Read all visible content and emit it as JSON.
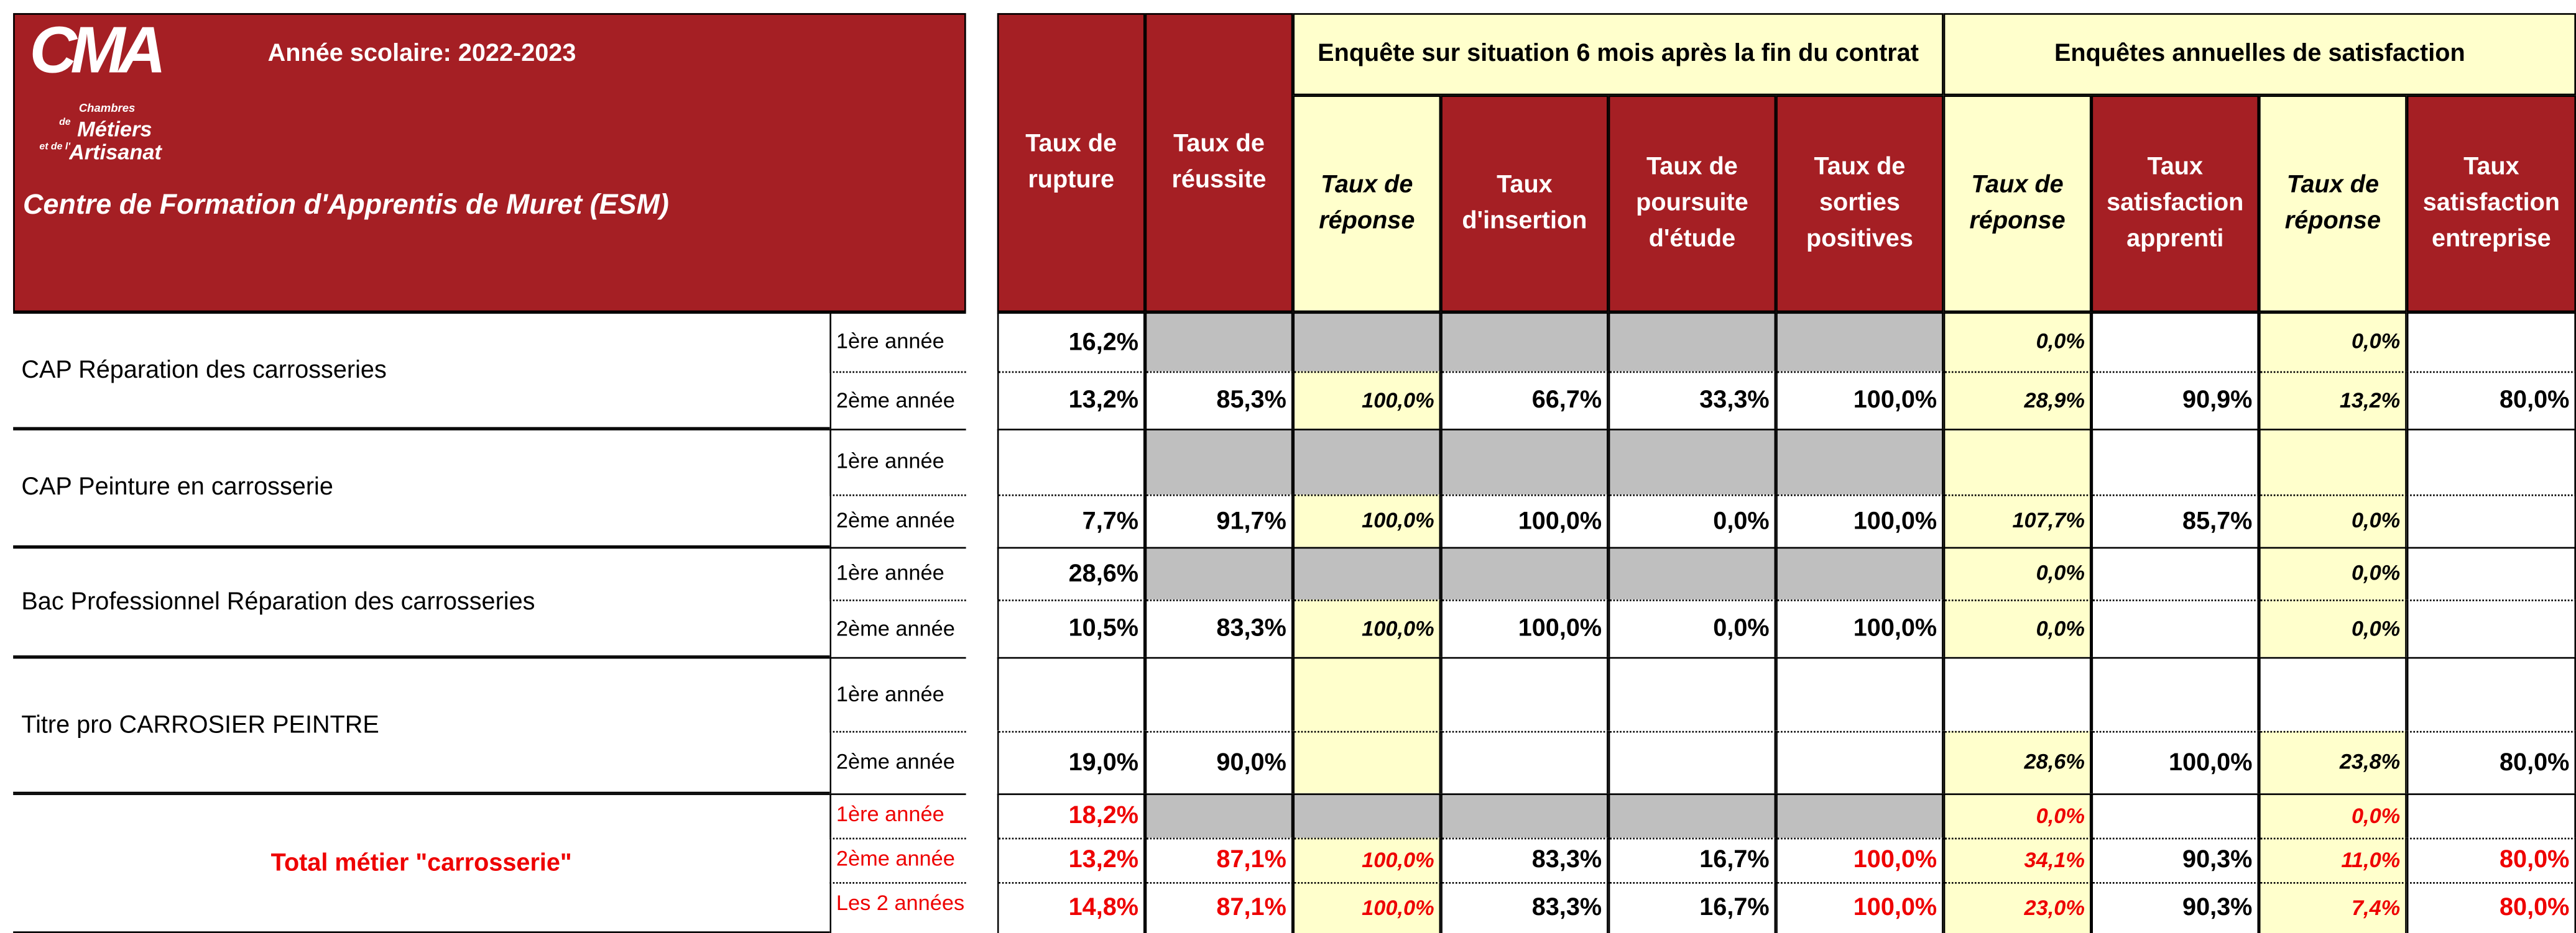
{
  "header": {
    "logo": {
      "letters": "CMA",
      "line1": "Chambres",
      "line2": "de",
      "line3": "Métiers",
      "line4": "et de l'",
      "line5": "Artisanat"
    },
    "school_year": "Année scolaire: 2022-2023",
    "centre": "Centre de Formation d'Apprentis de Muret (ESM)"
  },
  "groups": [
    "Enquête sur situation 6 mois après la fin du contrat",
    "Enquêtes annuelles  de satisfaction"
  ],
  "columns": [
    "Taux de rupture",
    "Taux de réussite",
    "Taux de réponse",
    "Taux d'insertion",
    "Taux de poursuite d'étude",
    "Taux de sorties positives",
    "Taux de réponse",
    "Taux satisfaction apprenti",
    "Taux de réponse",
    "Taux satisfaction entreprise"
  ],
  "rows": [
    {
      "label": "CAP Réparation des carrosseries",
      "sub": [
        {
          "year": "1ère année",
          "cells": [
            "16,2%",
            null,
            null,
            null,
            null,
            null,
            "0,0%",
            null,
            "0,0%",
            null
          ]
        },
        {
          "year": "2ème année",
          "cells": [
            "13,2%",
            "85,3%",
            "100,0%",
            "66,7%",
            "33,3%",
            "100,0%",
            "28,9%",
            "90,9%",
            "13,2%",
            "80,0%"
          ]
        }
      ]
    },
    {
      "label": "CAP Peinture en carrosserie",
      "sub": [
        {
          "year": "1ère année",
          "cells": [
            null,
            null,
            null,
            null,
            null,
            null,
            null,
            null,
            null,
            null
          ]
        },
        {
          "year": "2ème année",
          "cells": [
            "7,7%",
            "91,7%",
            "100,0%",
            "100,0%",
            "0,0%",
            "100,0%",
            "107,7%",
            "85,7%",
            "0,0%",
            null
          ]
        }
      ]
    },
    {
      "label": "Bac Professionnel Réparation des carrosseries",
      "sub": [
        {
          "year": "1ère année",
          "cells": [
            "28,6%",
            null,
            null,
            null,
            null,
            null,
            "0,0%",
            null,
            "0,0%",
            null
          ]
        },
        {
          "year": "2ème année",
          "cells": [
            "10,5%",
            "83,3%",
            "100,0%",
            "100,0%",
            "0,0%",
            "100,0%",
            "0,0%",
            null,
            "0,0%",
            null
          ]
        }
      ]
    },
    {
      "label": "Titre pro  CARROSIER PEINTRE",
      "sub": [
        {
          "year": "1ère année",
          "cells": [
            null,
            null,
            null,
            null,
            null,
            null,
            null,
            null,
            null,
            null
          ]
        },
        {
          "year": "2ème année",
          "cells": [
            "19,0%",
            "90,0%",
            null,
            null,
            null,
            null,
            "28,6%",
            "100,0%",
            "23,8%",
            "80,0%"
          ]
        }
      ]
    },
    {
      "label": "Total métier \"carrosserie\"",
      "sub": [
        {
          "year": "1ère année",
          "cells": [
            "18,2%",
            null,
            null,
            null,
            null,
            null,
            "0,0%",
            null,
            "0,0%",
            null
          ]
        },
        {
          "year": "2ème année",
          "cells": [
            "13,2%",
            "87,1%",
            "100,0%",
            "83,3%",
            "16,7%",
            "100,0%",
            "34,1%",
            "90,3%",
            "11,0%",
            "80,0%"
          ]
        },
        {
          "year": "Les 2 années",
          "cells": [
            "14,8%",
            "87,1%",
            "100,0%",
            "83,3%",
            "16,7%",
            "100,0%",
            "23,0%",
            "90,3%",
            "7,4%",
            "80,0%"
          ]
        }
      ]
    }
  ]
}
